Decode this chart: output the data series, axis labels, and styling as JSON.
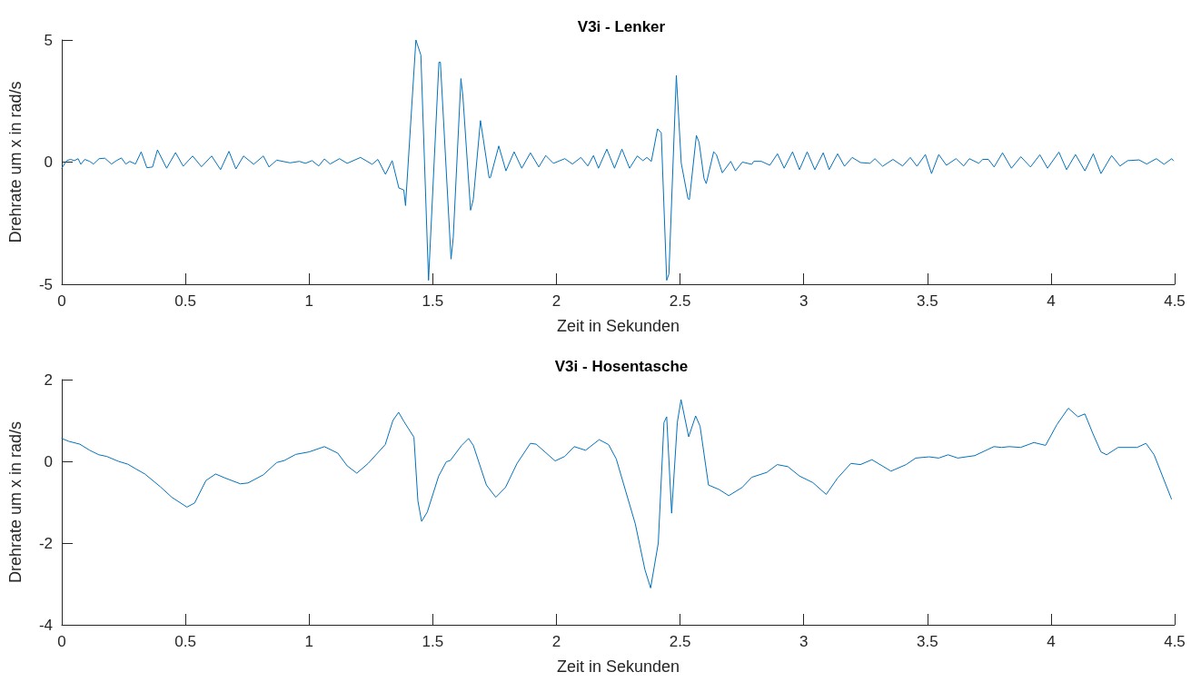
{
  "chart_data": [
    {
      "type": "line",
      "title": "V3i - Lenker",
      "xlabel": "Zeit in Sekunden",
      "ylabel": "Drehrate um x in rad/s",
      "xlim": [
        0,
        4.5
      ],
      "xticks": [
        0,
        0.5,
        1,
        1.5,
        2,
        2.5,
        3,
        3.5,
        4,
        4.5
      ],
      "ylim": [
        -5,
        5
      ],
      "yticks": [
        -5,
        0,
        5
      ],
      "marker": "none",
      "line_style": "solid",
      "series": [
        {
          "color": "#0072bd",
          "x": [
            0.0,
            0.02,
            0.035,
            0.051,
            0.066,
            0.077,
            0.093,
            0.113,
            0.128,
            0.151,
            0.174,
            0.201,
            0.221,
            0.241,
            0.259,
            0.275,
            0.298,
            0.321,
            0.344,
            0.367,
            0.387,
            0.424,
            0.46,
            0.491,
            0.529,
            0.565,
            0.606,
            0.642,
            0.676,
            0.704,
            0.735,
            0.776,
            0.815,
            0.838,
            0.869,
            0.923,
            0.961,
            0.985,
            1.012,
            1.039,
            1.062,
            1.085,
            1.123,
            1.154,
            1.208,
            1.255,
            1.278,
            1.309,
            1.336,
            1.363,
            1.383,
            1.39,
            1.432,
            1.452,
            1.483,
            1.525,
            1.531,
            1.574,
            1.583,
            1.614,
            1.622,
            1.653,
            1.664,
            1.693,
            1.704,
            1.728,
            1.733,
            1.767,
            1.796,
            1.829,
            1.86,
            1.895,
            1.929,
            1.957,
            1.988,
            2.034,
            2.065,
            2.099,
            2.127,
            2.15,
            2.17,
            2.204,
            2.235,
            2.265,
            2.296,
            2.327,
            2.35,
            2.366,
            2.384,
            2.409,
            2.424,
            2.446,
            2.455,
            2.485,
            2.505,
            2.532,
            2.538,
            2.566,
            2.577,
            2.597,
            2.606,
            2.636,
            2.647,
            2.671,
            2.705,
            2.724,
            2.752,
            2.79,
            2.798,
            2.829,
            2.863,
            2.894,
            2.921,
            2.955,
            2.983,
            3.014,
            3.045,
            3.079,
            3.103,
            3.137,
            3.165,
            3.196,
            3.23,
            3.268,
            3.288,
            3.319,
            3.361,
            3.4,
            3.431,
            3.458,
            3.492,
            3.517,
            3.546,
            3.577,
            3.616,
            3.647,
            3.67,
            3.708,
            3.724,
            3.747,
            3.77,
            3.804,
            3.84,
            3.878,
            3.917,
            3.955,
            3.986,
            4.032,
            4.063,
            4.099,
            4.137,
            4.171,
            4.202,
            4.245,
            4.279,
            4.31,
            4.356,
            4.387,
            4.426,
            4.457,
            4.488,
            4.495
          ],
          "values": [
            -0.25,
            0.06,
            0.11,
            0.06,
            0.14,
            -0.09,
            0.11,
            0.03,
            -0.08,
            0.14,
            0.16,
            -0.08,
            0.06,
            0.17,
            -0.08,
            0.03,
            -0.08,
            0.42,
            -0.23,
            -0.2,
            0.5,
            -0.25,
            0.39,
            -0.17,
            0.25,
            -0.19,
            0.25,
            -0.31,
            0.44,
            -0.28,
            0.25,
            -0.09,
            0.25,
            -0.2,
            0.08,
            -0.03,
            0.03,
            -0.05,
            0.06,
            -0.16,
            0.13,
            -0.08,
            0.14,
            -0.05,
            0.19,
            -0.09,
            0.11,
            -0.5,
            0.06,
            -1.06,
            -1.14,
            -1.78,
            5.0,
            4.38,
            -4.84,
            4.09,
            4.09,
            -3.97,
            -3.09,
            3.42,
            2.69,
            -1.97,
            -1.53,
            1.7,
            0.97,
            -0.64,
            -0.64,
            0.66,
            -0.36,
            0.42,
            -0.25,
            0.38,
            -0.2,
            0.27,
            -0.05,
            0.14,
            -0.08,
            0.19,
            -0.16,
            0.27,
            -0.25,
            0.53,
            -0.25,
            0.53,
            -0.25,
            0.25,
            0.06,
            0.19,
            0.03,
            1.36,
            1.2,
            -4.84,
            -4.58,
            3.55,
            -0.05,
            -1.5,
            -1.53,
            1.09,
            0.81,
            -0.67,
            -0.88,
            0.42,
            0.31,
            -0.44,
            0.03,
            -0.36,
            0.0,
            -0.09,
            0.03,
            0.03,
            -0.13,
            0.34,
            -0.25,
            0.42,
            -0.31,
            0.42,
            -0.31,
            0.38,
            -0.31,
            0.34,
            -0.17,
            0.19,
            -0.02,
            -0.05,
            0.14,
            -0.17,
            0.11,
            -0.16,
            0.19,
            -0.17,
            0.31,
            -0.47,
            0.31,
            -0.13,
            0.14,
            -0.16,
            0.14,
            -0.05,
            0.11,
            0.11,
            -0.2,
            0.38,
            -0.25,
            0.22,
            -0.2,
            0.3,
            -0.25,
            0.41,
            -0.31,
            0.31,
            -0.36,
            0.34,
            -0.47,
            0.27,
            -0.16,
            0.06,
            0.09,
            -0.08,
            0.14,
            -0.09,
            0.14,
            0.06
          ]
        }
      ]
    },
    {
      "type": "line",
      "title": "V3i - Hosentasche",
      "xlabel": "Zeit in Sekunden",
      "ylabel": "Drehrate um x in rad/s",
      "xlim": [
        0,
        4.5
      ],
      "xticks": [
        0,
        0.5,
        1,
        1.5,
        2,
        2.5,
        3,
        3.5,
        4,
        4.5
      ],
      "ylim": [
        -4,
        2
      ],
      "yticks": [
        -4,
        -2,
        0,
        2
      ],
      "marker": "none",
      "line_style": "solid",
      "series": [
        {
          "color": "#0072bd",
          "x": [
            0.0,
            0.028,
            0.073,
            0.113,
            0.15,
            0.182,
            0.229,
            0.267,
            0.298,
            0.336,
            0.398,
            0.445,
            0.506,
            0.537,
            0.583,
            0.622,
            0.661,
            0.722,
            0.753,
            0.815,
            0.869,
            0.9,
            0.946,
            1.0,
            1.062,
            1.116,
            1.154,
            1.193,
            1.239,
            1.308,
            1.339,
            1.362,
            1.385,
            1.424,
            1.44,
            1.455,
            1.478,
            1.524,
            1.555,
            1.571,
            1.617,
            1.645,
            1.664,
            1.717,
            1.755,
            1.794,
            1.841,
            1.895,
            1.918,
            1.995,
            2.034,
            2.072,
            2.118,
            2.173,
            2.211,
            2.242,
            2.319,
            2.358,
            2.381,
            2.412,
            2.435,
            2.446,
            2.466,
            2.489,
            2.504,
            2.535,
            2.563,
            2.581,
            2.615,
            2.658,
            2.697,
            2.751,
            2.79,
            2.851,
            2.893,
            2.936,
            2.983,
            3.037,
            3.091,
            3.137,
            3.191,
            3.229,
            3.276,
            3.353,
            3.414,
            3.453,
            3.507,
            3.546,
            3.584,
            3.623,
            3.692,
            3.769,
            3.8,
            3.831,
            3.877,
            3.931,
            3.978,
            4.024,
            4.07,
            4.109,
            4.137,
            4.17,
            4.202,
            4.225,
            4.271,
            4.348,
            4.384,
            4.417,
            4.487
          ],
          "values": [
            0.56,
            0.49,
            0.42,
            0.27,
            0.16,
            0.12,
            0.0,
            -0.07,
            -0.18,
            -0.31,
            -0.62,
            -0.88,
            -1.12,
            -1.02,
            -0.47,
            -0.31,
            -0.41,
            -0.55,
            -0.53,
            -0.33,
            -0.03,
            0.02,
            0.17,
            0.23,
            0.36,
            0.2,
            -0.11,
            -0.29,
            -0.05,
            0.41,
            1.0,
            1.2,
            0.96,
            0.59,
            -0.97,
            -1.47,
            -1.24,
            -0.36,
            -0.01,
            0.02,
            0.39,
            0.56,
            0.39,
            -0.58,
            -0.88,
            -0.64,
            -0.05,
            0.44,
            0.42,
            0.01,
            0.12,
            0.36,
            0.27,
            0.53,
            0.41,
            0.06,
            -1.53,
            -2.65,
            -3.1,
            -2.0,
            0.95,
            1.09,
            -1.27,
            0.95,
            1.51,
            0.6,
            1.11,
            0.86,
            -0.58,
            -0.69,
            -0.84,
            -0.64,
            -0.39,
            -0.27,
            -0.08,
            -0.13,
            -0.36,
            -0.52,
            -0.81,
            -0.41,
            -0.05,
            -0.08,
            0.04,
            -0.24,
            -0.08,
            0.08,
            0.11,
            0.08,
            0.16,
            0.08,
            0.14,
            0.36,
            0.34,
            0.36,
            0.34,
            0.46,
            0.39,
            0.9,
            1.3,
            1.09,
            1.16,
            0.67,
            0.23,
            0.16,
            0.34,
            0.34,
            0.44,
            0.16,
            -0.92
          ]
        }
      ]
    }
  ]
}
